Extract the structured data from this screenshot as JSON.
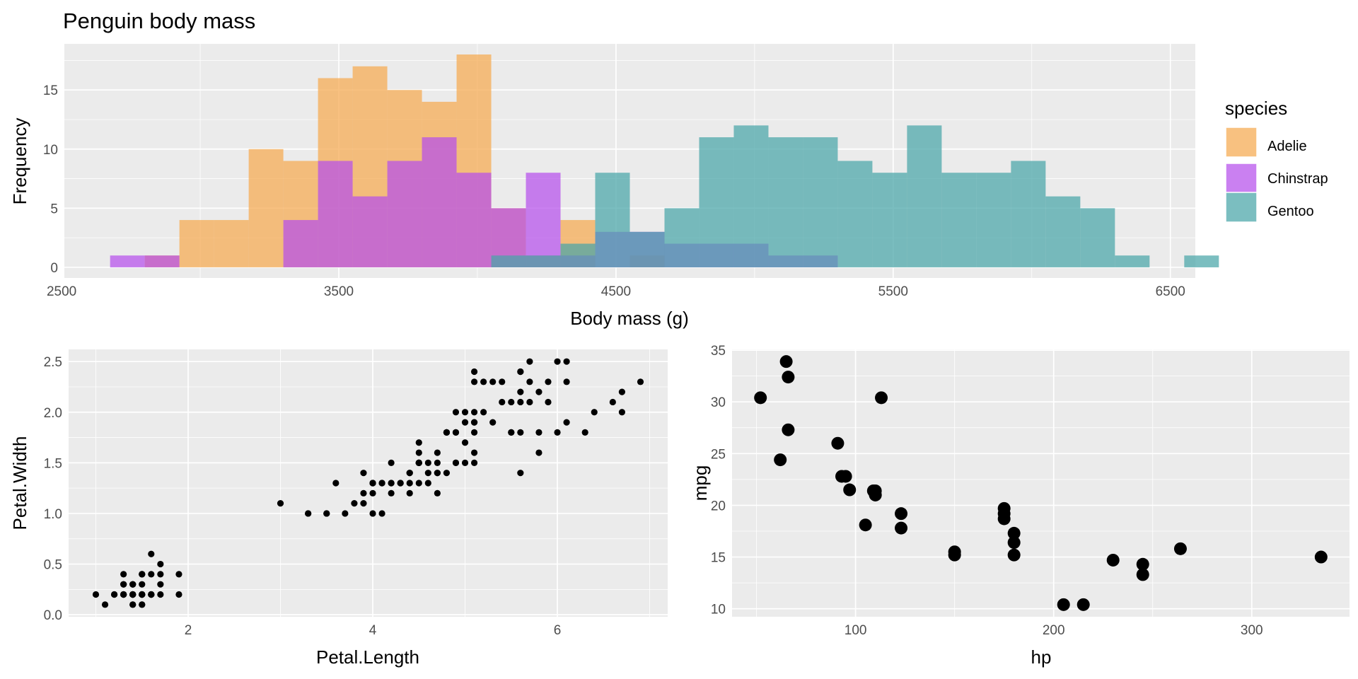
{
  "colors": {
    "panel_bg": "#EBEBEB",
    "grid_major": "#FFFFFF",
    "Adelie": "#F5A94F",
    "Chinstrap": "#B64FEB",
    "Gentoo": "#48A5A7",
    "points": "#000000"
  },
  "chart_data": [
    {
      "type": "histogram",
      "title": "Penguin body mass",
      "xlabel": "Body mass (g)",
      "ylabel": "Frequency",
      "xlim": [
        2510,
        6590
      ],
      "ylim": [
        -0.9,
        18.9
      ],
      "xticks": [
        2500,
        3500,
        4500,
        5500,
        6500
      ],
      "xtick_labels": [
        "2500",
        "3500",
        "4500",
        "5500",
        "6500"
      ],
      "yticks": [
        0,
        5,
        10,
        15
      ],
      "ytick_labels": [
        "0",
        "5",
        "10",
        "15"
      ],
      "grid": true,
      "bin_width": 125,
      "bin_start": 2675,
      "legend_title": "species",
      "legend_position": "right",
      "series": [
        {
          "name": "Adelie",
          "counts": [
            0,
            1,
            4,
            4,
            10,
            9,
            16,
            17,
            15,
            14,
            18,
            5,
            1,
            4,
            0,
            1,
            0,
            0,
            0,
            0,
            0,
            0,
            0,
            0,
            0,
            0,
            0,
            0,
            0,
            0
          ]
        },
        {
          "name": "Chinstrap",
          "counts": [
            1,
            1,
            0,
            0,
            0,
            4,
            9,
            6,
            9,
            11,
            8,
            5,
            8,
            1,
            3,
            3,
            2,
            2,
            2,
            1,
            1,
            0,
            0,
            0,
            0,
            0,
            0,
            0,
            0,
            0
          ]
        },
        {
          "name": "Gentoo",
          "counts": [
            0,
            0,
            0,
            0,
            0,
            0,
            0,
            0,
            0,
            0,
            0,
            1,
            1,
            2,
            8,
            3,
            5,
            11,
            12,
            11,
            11,
            9,
            8,
            12,
            8,
            8,
            9,
            6,
            5,
            1,
            0,
            1
          ]
        }
      ]
    },
    {
      "type": "scatter",
      "xlabel": "Petal.Length",
      "ylabel": "Petal.Width",
      "xlim": [
        0.705,
        7.195
      ],
      "ylim": [
        -0.02,
        2.62
      ],
      "xticks": [
        2,
        4,
        6
      ],
      "xtick_labels": [
        "2",
        "4",
        "6"
      ],
      "yticks": [
        0.0,
        0.5,
        1.0,
        1.5,
        2.0,
        2.5
      ],
      "ytick_labels": [
        "0.0",
        "0.5",
        "1.0",
        "1.5",
        "2.0",
        "2.5"
      ],
      "grid": true,
      "points": [
        [
          1.4,
          0.2
        ],
        [
          1.4,
          0.2
        ],
        [
          1.3,
          0.2
        ],
        [
          1.5,
          0.2
        ],
        [
          1.4,
          0.2
        ],
        [
          1.7,
          0.4
        ],
        [
          1.4,
          0.3
        ],
        [
          1.5,
          0.2
        ],
        [
          1.4,
          0.2
        ],
        [
          1.5,
          0.1
        ],
        [
          1.5,
          0.2
        ],
        [
          1.6,
          0.2
        ],
        [
          1.4,
          0.1
        ],
        [
          1.1,
          0.1
        ],
        [
          1.2,
          0.2
        ],
        [
          1.5,
          0.4
        ],
        [
          1.3,
          0.4
        ],
        [
          1.4,
          0.3
        ],
        [
          1.7,
          0.3
        ],
        [
          1.5,
          0.3
        ],
        [
          1.7,
          0.2
        ],
        [
          1.5,
          0.4
        ],
        [
          1.0,
          0.2
        ],
        [
          1.7,
          0.5
        ],
        [
          1.9,
          0.2
        ],
        [
          1.6,
          0.2
        ],
        [
          1.6,
          0.4
        ],
        [
          1.5,
          0.2
        ],
        [
          1.4,
          0.2
        ],
        [
          1.6,
          0.2
        ],
        [
          1.6,
          0.2
        ],
        [
          1.5,
          0.4
        ],
        [
          1.5,
          0.1
        ],
        [
          1.4,
          0.2
        ],
        [
          1.5,
          0.2
        ],
        [
          1.2,
          0.2
        ],
        [
          1.3,
          0.2
        ],
        [
          1.4,
          0.1
        ],
        [
          1.3,
          0.2
        ],
        [
          1.5,
          0.2
        ],
        [
          1.3,
          0.3
        ],
        [
          1.3,
          0.3
        ],
        [
          1.3,
          0.2
        ],
        [
          1.6,
          0.6
        ],
        [
          1.9,
          0.4
        ],
        [
          1.4,
          0.3
        ],
        [
          1.6,
          0.2
        ],
        [
          1.4,
          0.2
        ],
        [
          1.5,
          0.2
        ],
        [
          1.4,
          0.2
        ],
        [
          4.7,
          1.4
        ],
        [
          4.5,
          1.5
        ],
        [
          4.9,
          1.5
        ],
        [
          4.0,
          1.3
        ],
        [
          4.6,
          1.5
        ],
        [
          4.5,
          1.3
        ],
        [
          4.7,
          1.6
        ],
        [
          3.3,
          1.0
        ],
        [
          4.6,
          1.3
        ],
        [
          3.9,
          1.4
        ],
        [
          3.5,
          1.0
        ],
        [
          4.2,
          1.5
        ],
        [
          4.0,
          1.0
        ],
        [
          4.7,
          1.4
        ],
        [
          3.6,
          1.3
        ],
        [
          4.4,
          1.4
        ],
        [
          4.5,
          1.5
        ],
        [
          4.1,
          1.0
        ],
        [
          4.5,
          1.5
        ],
        [
          3.9,
          1.1
        ],
        [
          4.8,
          1.8
        ],
        [
          4.0,
          1.3
        ],
        [
          4.9,
          1.5
        ],
        [
          4.7,
          1.2
        ],
        [
          4.3,
          1.3
        ],
        [
          4.4,
          1.4
        ],
        [
          4.8,
          1.4
        ],
        [
          5.0,
          1.7
        ],
        [
          4.5,
          1.5
        ],
        [
          3.5,
          1.0
        ],
        [
          3.8,
          1.1
        ],
        [
          3.7,
          1.0
        ],
        [
          3.9,
          1.2
        ],
        [
          5.1,
          1.6
        ],
        [
          4.5,
          1.5
        ],
        [
          4.5,
          1.6
        ],
        [
          4.7,
          1.5
        ],
        [
          4.4,
          1.3
        ],
        [
          4.1,
          1.3
        ],
        [
          4.0,
          1.3
        ],
        [
          4.4,
          1.2
        ],
        [
          4.6,
          1.4
        ],
        [
          4.0,
          1.2
        ],
        [
          3.3,
          1.0
        ],
        [
          4.2,
          1.3
        ],
        [
          4.2,
          1.2
        ],
        [
          4.2,
          1.3
        ],
        [
          4.3,
          1.3
        ],
        [
          3.0,
          1.1
        ],
        [
          4.1,
          1.3
        ],
        [
          6.0,
          2.5
        ],
        [
          5.1,
          1.9
        ],
        [
          5.9,
          2.1
        ],
        [
          5.6,
          1.8
        ],
        [
          5.8,
          2.2
        ],
        [
          6.6,
          2.1
        ],
        [
          4.5,
          1.7
        ],
        [
          6.3,
          1.8
        ],
        [
          5.8,
          1.8
        ],
        [
          6.1,
          2.5
        ],
        [
          5.1,
          2.0
        ],
        [
          5.3,
          1.9
        ],
        [
          5.5,
          2.1
        ],
        [
          5.0,
          2.0
        ],
        [
          5.1,
          2.4
        ],
        [
          5.3,
          2.3
        ],
        [
          5.5,
          1.8
        ],
        [
          6.7,
          2.2
        ],
        [
          6.9,
          2.3
        ],
        [
          5.0,
          1.5
        ],
        [
          5.7,
          2.3
        ],
        [
          4.9,
          2.0
        ],
        [
          6.7,
          2.0
        ],
        [
          4.9,
          1.8
        ],
        [
          5.7,
          2.1
        ],
        [
          6.0,
          1.8
        ],
        [
          4.8,
          1.8
        ],
        [
          4.9,
          1.8
        ],
        [
          5.6,
          2.1
        ],
        [
          5.8,
          1.6
        ],
        [
          6.1,
          1.9
        ],
        [
          6.4,
          2.0
        ],
        [
          5.6,
          2.2
        ],
        [
          5.1,
          1.5
        ],
        [
          5.6,
          1.4
        ],
        [
          6.1,
          2.3
        ],
        [
          5.6,
          2.4
        ],
        [
          5.5,
          1.8
        ],
        [
          4.8,
          1.8
        ],
        [
          5.4,
          2.1
        ],
        [
          5.6,
          2.4
        ],
        [
          5.1,
          2.3
        ],
        [
          5.1,
          1.9
        ],
        [
          5.9,
          2.3
        ],
        [
          5.7,
          2.5
        ],
        [
          5.2,
          2.3
        ],
        [
          5.0,
          1.9
        ],
        [
          5.2,
          2.0
        ],
        [
          5.4,
          2.3
        ],
        [
          5.1,
          1.8
        ]
      ]
    },
    {
      "type": "scatter",
      "xlabel": "hp",
      "ylabel": "mpg",
      "xlim": [
        37.65,
        349.35
      ],
      "ylim": [
        9.225,
        35.075
      ],
      "xticks": [
        100,
        200,
        300
      ],
      "xtick_labels": [
        "100",
        "200",
        "300"
      ],
      "yticks": [
        10,
        15,
        20,
        25,
        30,
        35
      ],
      "ytick_labels": [
        "10",
        "15",
        "20",
        "25",
        "30",
        "35"
      ],
      "grid": true,
      "points": [
        [
          110,
          21.0
        ],
        [
          110,
          21.0
        ],
        [
          93,
          22.8
        ],
        [
          110,
          21.4
        ],
        [
          175,
          18.7
        ],
        [
          105,
          18.1
        ],
        [
          245,
          14.3
        ],
        [
          62,
          24.4
        ],
        [
          95,
          22.8
        ],
        [
          123,
          19.2
        ],
        [
          123,
          17.8
        ],
        [
          180,
          16.4
        ],
        [
          180,
          17.3
        ],
        [
          180,
          15.2
        ],
        [
          205,
          10.4
        ],
        [
          215,
          10.4
        ],
        [
          230,
          14.7
        ],
        [
          66,
          32.4
        ],
        [
          52,
          30.4
        ],
        [
          65,
          33.9
        ],
        [
          97,
          21.5
        ],
        [
          150,
          15.5
        ],
        [
          150,
          15.2
        ],
        [
          245,
          13.3
        ],
        [
          175,
          19.2
        ],
        [
          66,
          27.3
        ],
        [
          91,
          26.0
        ],
        [
          113,
          30.4
        ],
        [
          264,
          15.8
        ],
        [
          175,
          19.7
        ],
        [
          335,
          15.0
        ],
        [
          109,
          21.4
        ]
      ]
    }
  ]
}
